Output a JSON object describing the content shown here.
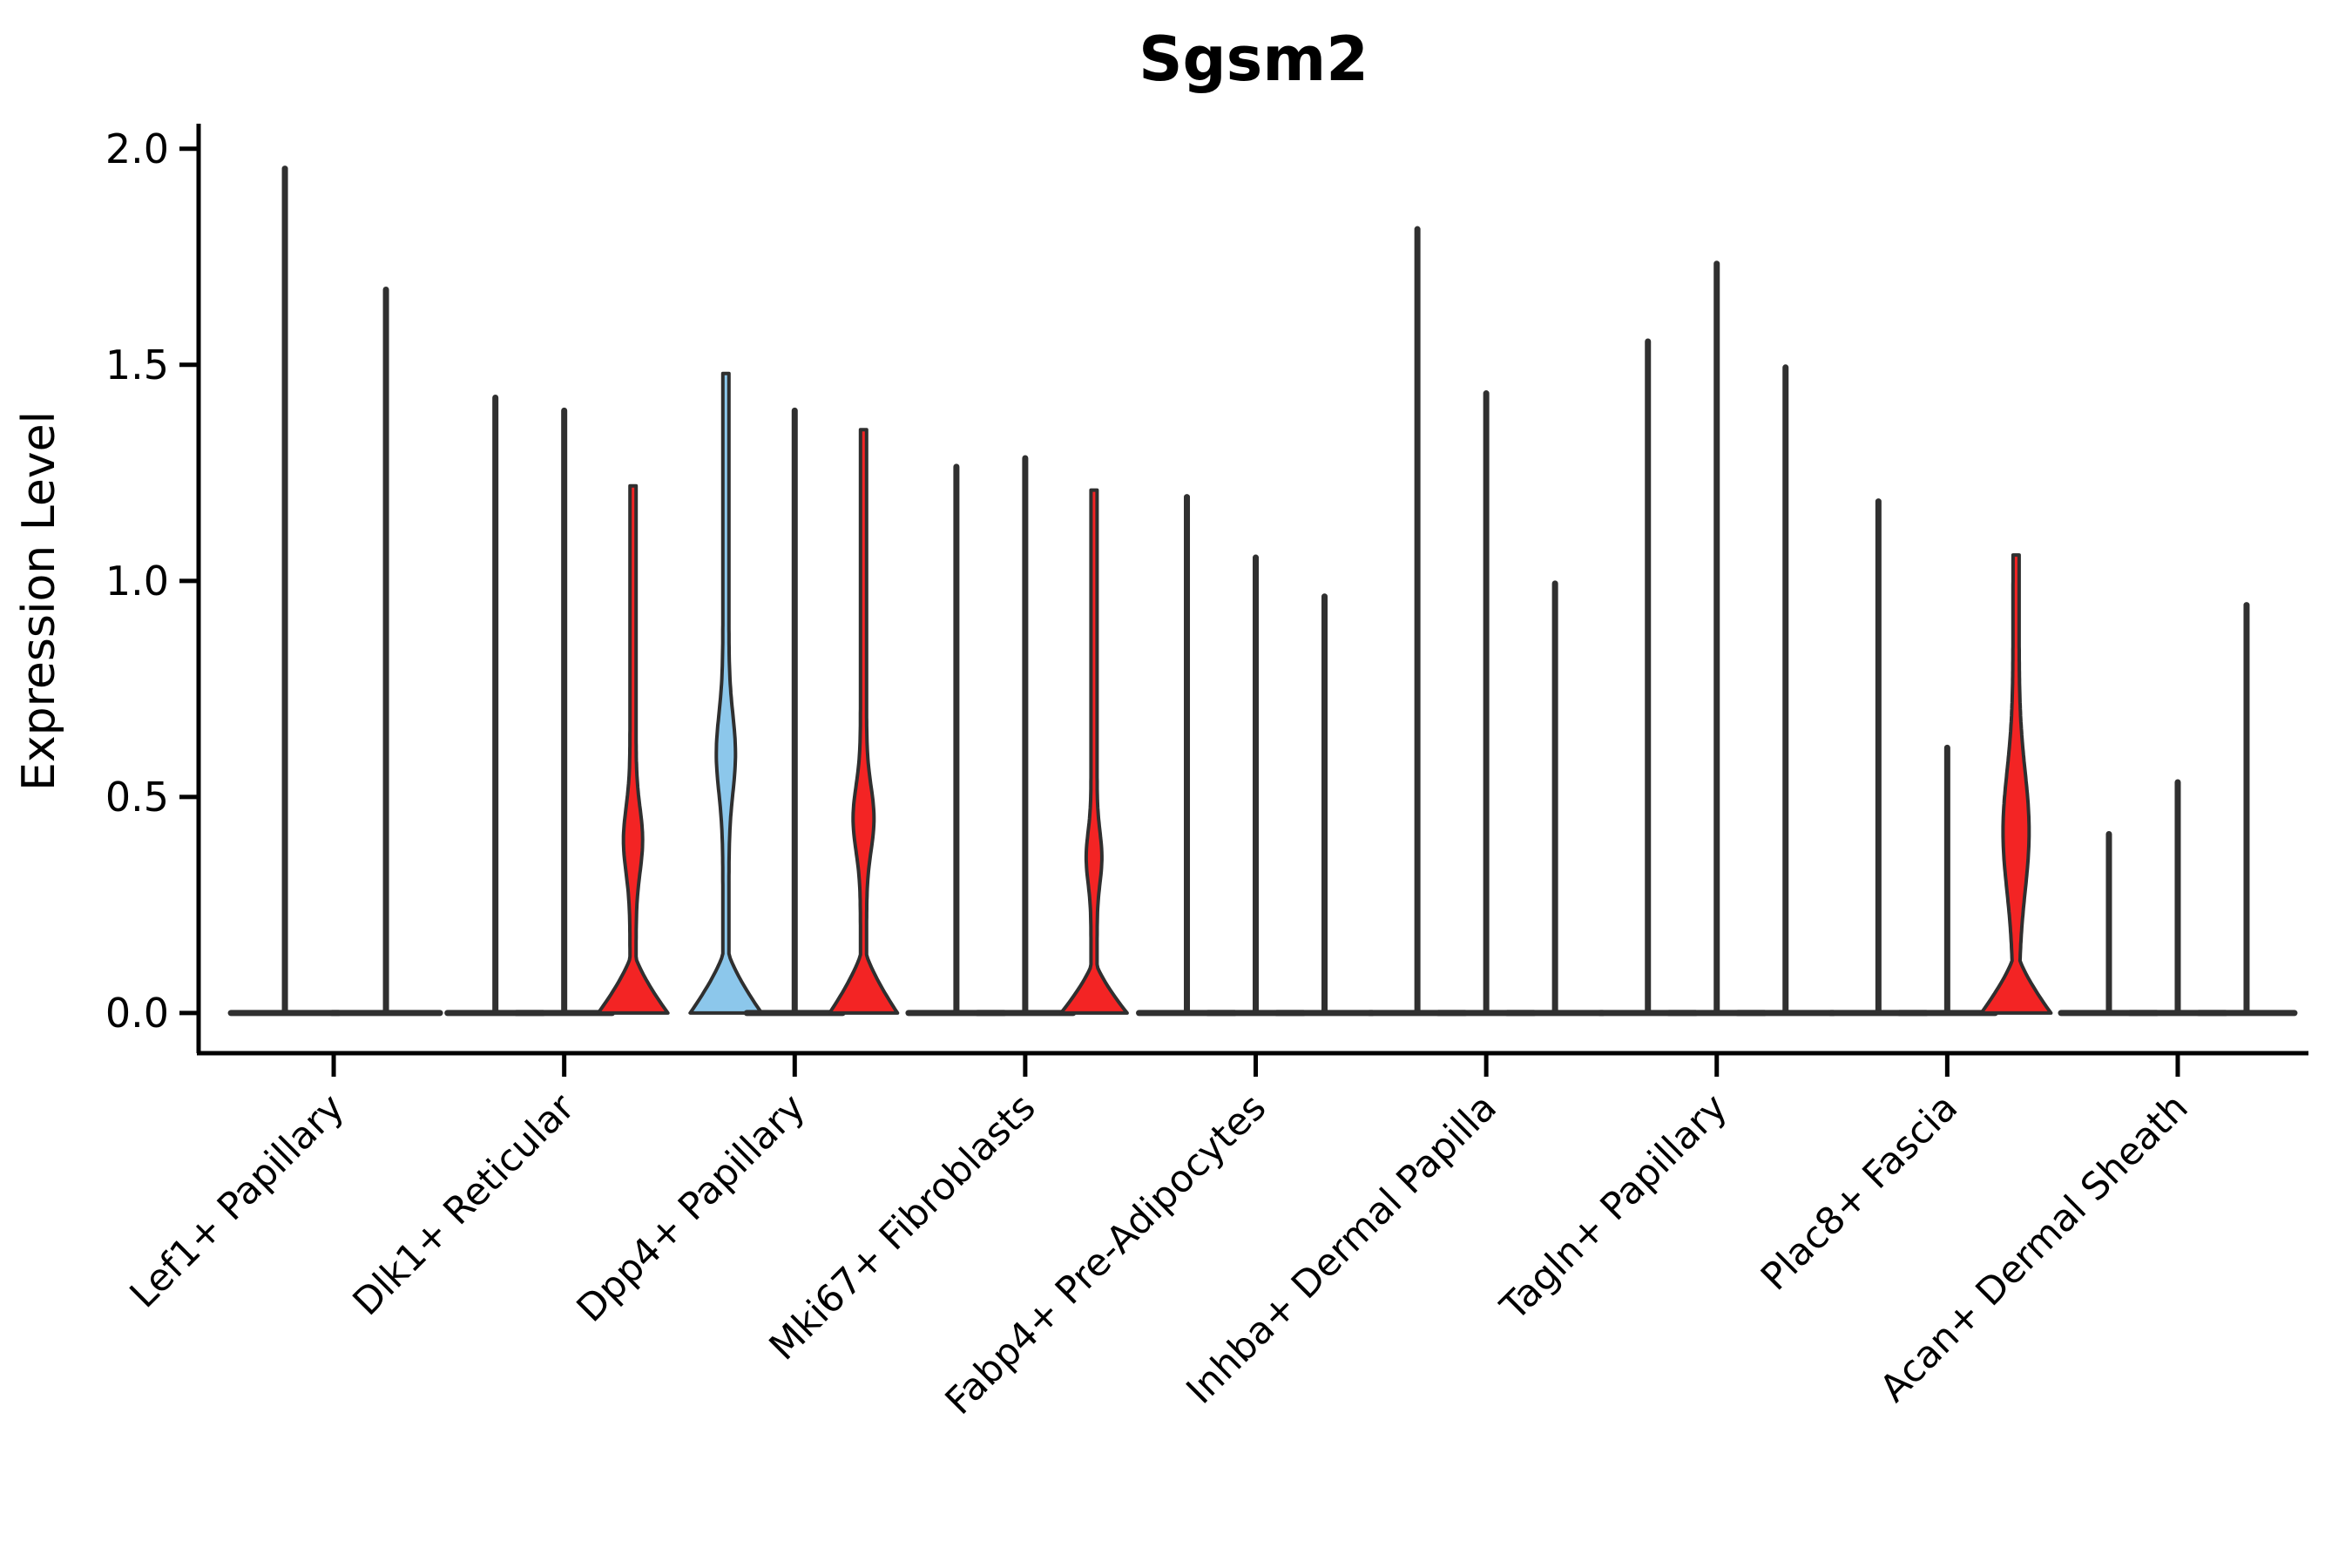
{
  "title": "Sgsm2",
  "y_axis": {
    "label": "Expression Level",
    "tick_labels": [
      "0.0",
      "0.5",
      "1.0",
      "1.5",
      "2.0"
    ]
  },
  "chart_data": {
    "type": "violin",
    "title": "Sgsm2",
    "ylabel": "Expression Level",
    "xlabel": "",
    "grid": false,
    "legend": "none",
    "ylim": [
      -0.093,
      2.058
    ],
    "xlim": [
      -0.586,
      8.567
    ],
    "yticks": [
      {
        "value": 0.0,
        "label": "0.0"
      },
      {
        "value": 0.5,
        "label": "0.5"
      },
      {
        "value": 1.0,
        "label": "1.0"
      },
      {
        "value": 1.5,
        "label": "1.5"
      },
      {
        "value": 2.0,
        "label": "2.0"
      }
    ],
    "categories": [
      "Lef1+ Papillary",
      "Dlk1+ Reticular",
      "Dpp4+ Papillary",
      "Mki67+ Fibroblasts",
      "Fabp4+ Pre-Adipocytes",
      "Inhba+ Dermal Papilla",
      "Tagln+ Papillary",
      "Plac8+ Fascia",
      "Acan+ Dermal Sheath"
    ],
    "colors": {
      "red": "#f32424",
      "blue": "#8cc7eb",
      "line": "#303030",
      "outline": "#2f2f2f",
      "spine": "#000000"
    },
    "groups": [
      {
        "label": "Lef1+ Papillary",
        "violins": [
          {
            "dx": -56,
            "max": 1.96,
            "dash": 62
          },
          {
            "dx": 60,
            "max": 1.68,
            "dash": 62
          }
        ]
      },
      {
        "label": "Dlk1+ Reticular",
        "violins": [
          {
            "dx": -79,
            "max": 1.43,
            "dash": 55
          },
          {
            "dx": 0,
            "max": 1.4,
            "dash": 55
          },
          {
            "dx": 79,
            "max": 1.22,
            "body": {
              "fill": "red",
              "base_hw": 40,
              "dome_top": 0.15,
              "bulge_lo": 0.2,
              "bulge_hi": 0.58,
              "peak": 0.4,
              "bulge_hw": 11
            }
          }
        ]
      },
      {
        "label": "Dpp4+ Papillary",
        "violins": [
          {
            "dx": -79,
            "max": 1.48,
            "body": {
              "fill": "blue",
              "base_hw": 41,
              "dome_top": 0.16,
              "bulge_lo": 0.34,
              "bulge_hi": 0.8,
              "peak": 0.6,
              "bulge_hw": 11
            }
          },
          {
            "dx": 0,
            "max": 1.4,
            "dash": 55
          },
          {
            "dx": 79,
            "max": 1.35,
            "body": {
              "fill": "red",
              "base_hw": 39,
              "dome_top": 0.16,
              "bulge_lo": 0.26,
              "bulge_hi": 0.64,
              "peak": 0.45,
              "bulge_hw": 12
            }
          }
        ]
      },
      {
        "label": "Mki67+ Fibroblasts",
        "violins": [
          {
            "dx": -79,
            "max": 1.27,
            "dash": 55
          },
          {
            "dx": 0,
            "max": 1.29,
            "dash": 55
          },
          {
            "dx": 79,
            "max": 1.21,
            "body": {
              "fill": "red",
              "base_hw": 38,
              "dome_top": 0.13,
              "bulge_lo": 0.22,
              "bulge_hi": 0.52,
              "peak": 0.36,
              "bulge_hw": 9
            }
          }
        ]
      },
      {
        "label": "Fabp4+ Pre-Adipocytes",
        "violins": [
          {
            "dx": -79,
            "max": 1.2,
            "dash": 55
          },
          {
            "dx": 0,
            "max": 1.06,
            "dash": 55
          },
          {
            "dx": 79,
            "max": 0.97,
            "dash": 55
          }
        ]
      },
      {
        "label": "Inhba+ Dermal Papilla",
        "violins": [
          {
            "dx": -79,
            "max": 1.82,
            "dash": 55
          },
          {
            "dx": 0,
            "max": 1.44,
            "dash": 55
          },
          {
            "dx": 79,
            "max": 1.0,
            "dash": 55
          }
        ]
      },
      {
        "label": "Tagln+ Papillary",
        "violins": [
          {
            "dx": -79,
            "max": 1.56,
            "dash": 55
          },
          {
            "dx": 0,
            "max": 1.74,
            "dash": 55
          },
          {
            "dx": 79,
            "max": 1.5,
            "dash": 55
          }
        ]
      },
      {
        "label": "Plac8+ Fascia",
        "violins": [
          {
            "dx": -79,
            "max": 1.19,
            "dash": 55
          },
          {
            "dx": 0,
            "max": 0.62,
            "dash": 55
          },
          {
            "dx": 79,
            "max": 1.06,
            "body": {
              "fill": "red",
              "base_hw": 40,
              "dome_top": 0.15,
              "bulge_lo": 0.16,
              "bulge_hi": 0.86,
              "peak": 0.42,
              "bulge_hw": 15
            }
          }
        ]
      },
      {
        "label": "Acan+ Dermal Sheath",
        "violins": [
          {
            "dx": -79,
            "max": 0.42,
            "dash": 55
          },
          {
            "dx": 0,
            "max": 0.54,
            "dash": 55
          },
          {
            "dx": 79,
            "max": 0.95,
            "dash": 55
          }
        ]
      }
    ]
  }
}
